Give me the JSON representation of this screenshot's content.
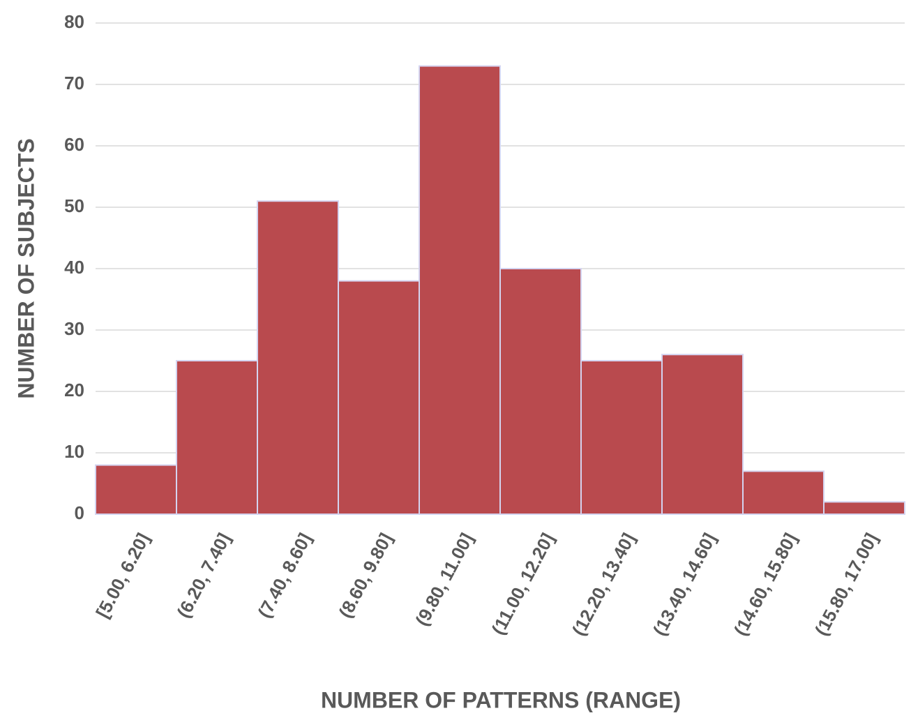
{
  "chart_data": {
    "type": "bar",
    "x_label": "NUMBER OF PATTERNS (RANGE)",
    "y_label": "NUMBER OF SUBJECTS",
    "categories": [
      "[5.00, 6.20]",
      "(6.20, 7.40]",
      "(7.40, 8.60]",
      "(8.60, 9.80]",
      "(9.80, 11.00]",
      "(11.00, 12.20]",
      "(12.20, 13.40]",
      "(13.40, 14.60]",
      "(14.60, 15.80]",
      "(15.80, 17.00]"
    ],
    "values": [
      8,
      25,
      51,
      38,
      73,
      40,
      25,
      26,
      7,
      2
    ],
    "color": "#b94a4e",
    "ylim": [
      0,
      80
    ],
    "yticks": [
      0,
      10,
      20,
      30,
      40,
      50,
      60,
      70,
      80
    ],
    "grid": true
  }
}
